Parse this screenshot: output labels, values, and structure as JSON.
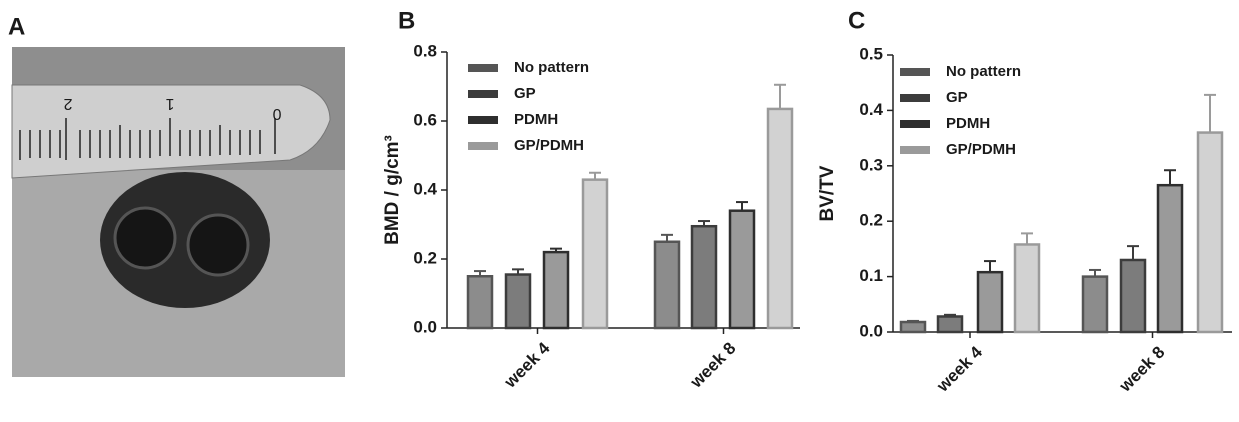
{
  "panels": [
    "A",
    "B",
    "C"
  ],
  "photo": {
    "ruler_labels": [
      "2",
      "1",
      "0"
    ]
  },
  "chart_data": [
    {
      "type": "bar",
      "y_label": "BMD / g/cm³",
      "categories": [
        "week 4",
        "week 8"
      ],
      "series": [
        {
          "name": "No pattern",
          "color": "#8c8c8c",
          "edge": "#555555",
          "values": [
            0.15,
            0.25
          ],
          "errors": [
            0.015,
            0.02
          ]
        },
        {
          "name": "GP",
          "color": "#7c7c7c",
          "edge": "#3c3c3c",
          "values": [
            0.155,
            0.295
          ],
          "errors": [
            0.015,
            0.015
          ]
        },
        {
          "name": "PDMH",
          "color": "#9a9a9a",
          "edge": "#2e2e2e",
          "values": [
            0.22,
            0.34
          ],
          "errors": [
            0.01,
            0.025
          ]
        },
        {
          "name": "GP/PDMH",
          "color": "#d2d2d2",
          "edge": "#9a9a9a",
          "values": [
            0.43,
            0.635
          ],
          "errors": [
            0.02,
            0.07
          ]
        }
      ],
      "ylim": [
        0,
        0.8
      ],
      "yticks": [
        {
          "value": 0,
          "label": "0.0"
        },
        0.2,
        0.4,
        0.6,
        0.8
      ]
    },
    {
      "type": "bar",
      "y_label": "BV/TV",
      "categories": [
        "week 4",
        "week 8"
      ],
      "series": [
        {
          "name": "No pattern",
          "color": "#8c8c8c",
          "edge": "#555555",
          "values": [
            0.018,
            0.1
          ],
          "errors": [
            0.002,
            0.012
          ]
        },
        {
          "name": "GP",
          "color": "#7c7c7c",
          "edge": "#3c3c3c",
          "values": [
            0.028,
            0.13
          ],
          "errors": [
            0.003,
            0.025
          ]
        },
        {
          "name": "PDMH",
          "color": "#9a9a9a",
          "edge": "#2e2e2e",
          "values": [
            0.108,
            0.265
          ],
          "errors": [
            0.02,
            0.027
          ]
        },
        {
          "name": "GP/PDMH",
          "color": "#d2d2d2",
          "edge": "#9a9a9a",
          "values": [
            0.158,
            0.36
          ],
          "errors": [
            0.02,
            0.068
          ]
        }
      ],
      "ylim": [
        0,
        0.5
      ],
      "yticks": [
        {
          "value": 0,
          "label": "0.0"
        },
        0.1,
        0.2,
        0.3,
        0.4,
        0.5
      ]
    }
  ]
}
